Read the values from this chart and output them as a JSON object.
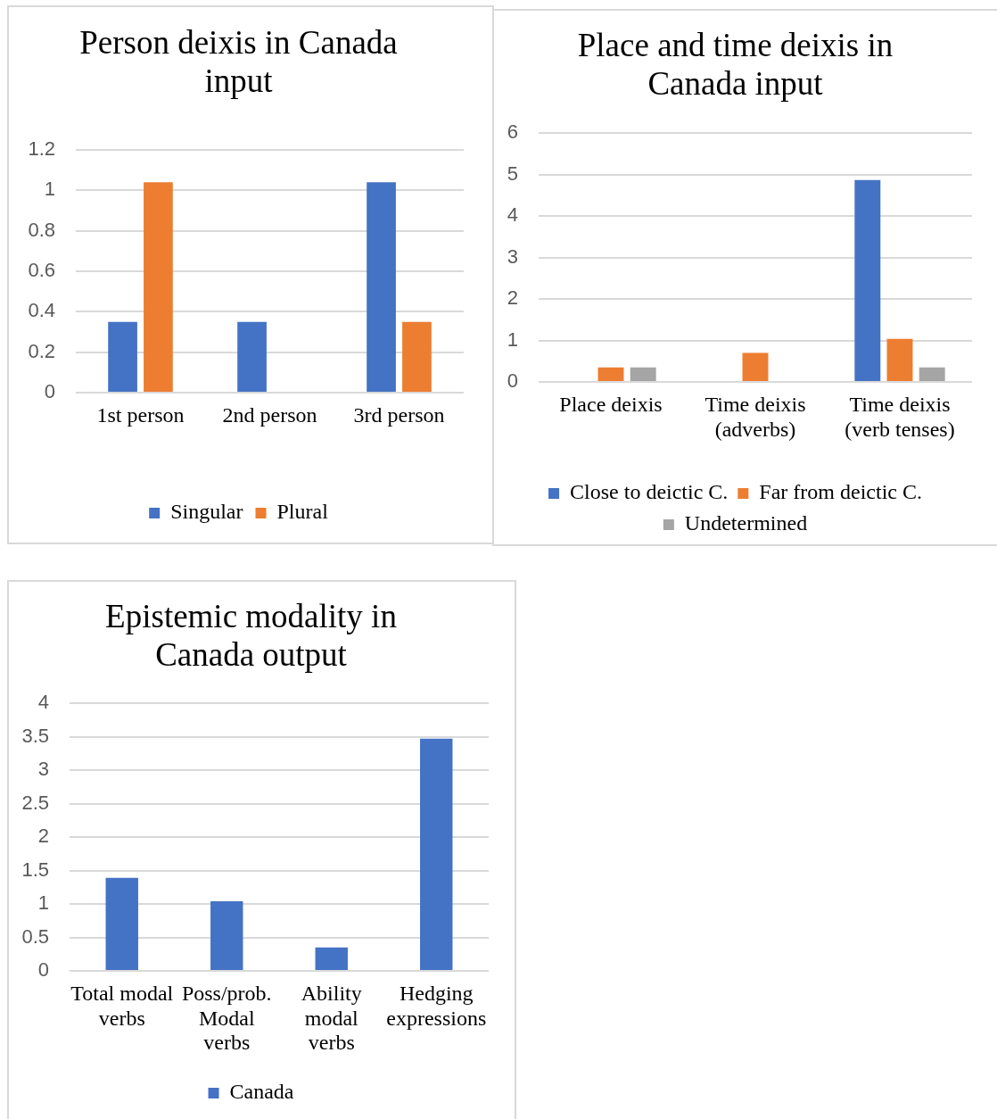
{
  "chart_data": [
    {
      "type": "bar",
      "title": "Person deixis in Canada input",
      "categories": [
        "1st person",
        "2nd person",
        "3rd person"
      ],
      "series": [
        {
          "name": "Singular",
          "color": "#4472c4",
          "values": [
            0.35,
            0.35,
            1.04
          ]
        },
        {
          "name": "Plural",
          "color": "#ed7d31",
          "values": [
            1.04,
            null,
            0.35
          ]
        }
      ],
      "ylim": [
        0,
        1.2
      ],
      "yticks": [
        0,
        0.2,
        0.4,
        0.6,
        0.8,
        1,
        1.2
      ],
      "grid": "y",
      "legend": "bottom"
    },
    {
      "type": "bar",
      "title": "Place and time deixis in Canada input",
      "categories": [
        "Place deixis",
        "Time deixis (adverbs)",
        "Time deixis (verb tenses)"
      ],
      "series": [
        {
          "name": "Close to deictic C.",
          "color": "#4472c4",
          "values": [
            null,
            null,
            4.87
          ]
        },
        {
          "name": "Far from deictic C.",
          "color": "#ed7d31",
          "values": [
            0.35,
            0.7,
            1.04
          ]
        },
        {
          "name": "Undetermined",
          "color": "#a5a5a5",
          "values": [
            0.35,
            null,
            0.35
          ]
        }
      ],
      "ylim": [
        0,
        6
      ],
      "yticks": [
        0,
        1,
        2,
        3,
        4,
        5,
        6
      ],
      "grid": "y",
      "legend": "bottom"
    },
    {
      "type": "bar",
      "title": "Epistemic modality in Canada output",
      "categories": [
        "Total modal verbs",
        "Poss/prob. Modal verbs",
        "Ability modal verbs",
        "Hedging expressions"
      ],
      "series": [
        {
          "name": "Canada",
          "color": "#4472c4",
          "values": [
            1.39,
            1.04,
            0.35,
            3.47
          ]
        }
      ],
      "ylim": [
        0,
        4
      ],
      "yticks": [
        0,
        0.5,
        1,
        1.5,
        2,
        2.5,
        3,
        3.5,
        4
      ],
      "grid": "y",
      "legend": "bottom"
    }
  ]
}
